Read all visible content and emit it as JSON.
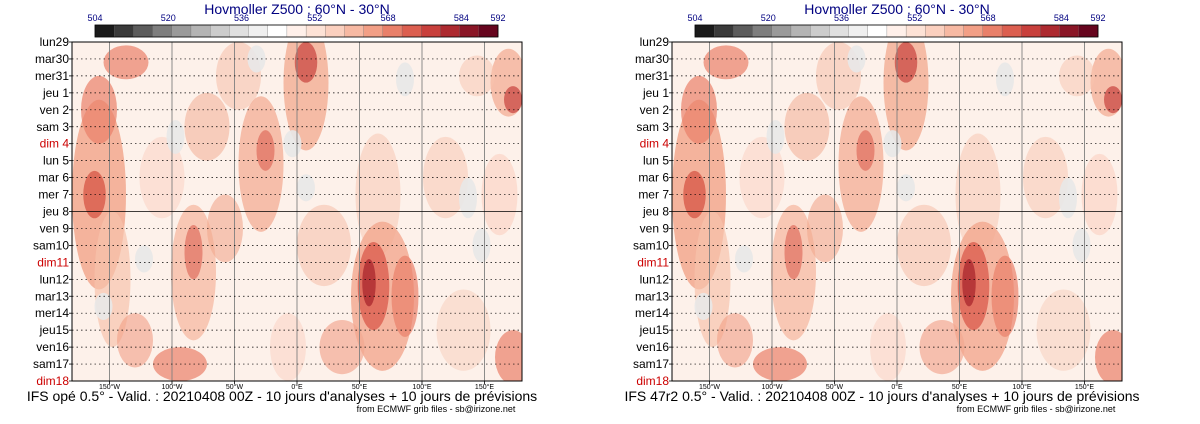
{
  "colors": {
    "title": "#000080",
    "weekend": "#cc0000",
    "weekday": "#000000",
    "grid": "#000000",
    "meridian": "#808080"
  },
  "colorbar": {
    "labels": [
      "504",
      "520",
      "536",
      "552",
      "568",
      "584",
      "592"
    ],
    "colors": [
      "#1a1a1a",
      "#3a3a3a",
      "#5c5c5c",
      "#7e7e7e",
      "#9a9a9a",
      "#b4b4b4",
      "#cccccc",
      "#e0e0e0",
      "#f0f0f0",
      "#ffffff",
      "#fff0ea",
      "#fde2d6",
      "#fbd0bf",
      "#f7b9a3",
      "#f29f86",
      "#e9806a",
      "#dc5f50",
      "#c8403c",
      "#ad2a30",
      "#8a1626",
      "#66051e"
    ]
  },
  "chart_data": [
    {
      "type": "heatmap",
      "title": "Hovmoller Z500 : 60°N - 30°N",
      "caption": "IFS opé 0.5° - Valid. : 20210408 00Z - 10 jours d'analyses + 10 jours de prévisions",
      "credit": "from ECMWF grib files - sb@irizone.net",
      "y_labels": [
        "lun29",
        "mar30",
        "mer31",
        "jeu 1",
        "ven 2",
        "sam 3",
        "dim 4",
        "lun 5",
        "mar 6",
        "mer 7",
        "jeu 8",
        "ven 9",
        "sam10",
        "dim11",
        "lun12",
        "mar13",
        "mer14",
        "jeu15",
        "ven16",
        "sam17",
        "dim18"
      ],
      "weekend_labels": [
        "dim 4",
        "dim11",
        "dim18"
      ],
      "x_labels": [
        "150°W",
        "100°W",
        "50°W",
        "0°E",
        "50°E",
        "100°E",
        "150°E"
      ],
      "x_values": [
        -150,
        -100,
        -50,
        0,
        50,
        100,
        150
      ],
      "xlim": [
        -180,
        180
      ],
      "analysis_forecast_split": "jeu 8",
      "colorbar_range": [
        504,
        592
      ]
    },
    {
      "type": "heatmap",
      "title": "Hovmoller Z500 : 60°N - 30°N",
      "caption": "IFS 47r2 0.5° - Valid. : 20210408 00Z - 10 jours d'analyses + 10 jours de prévisions",
      "credit": "from ECMWF grib files - sb@irizone.net",
      "y_labels": [
        "lun29",
        "mar30",
        "mer31",
        "jeu 1",
        "ven 2",
        "sam 3",
        "dim 4",
        "lun 5",
        "mar 6",
        "mer 7",
        "jeu 8",
        "ven 9",
        "sam10",
        "dim11",
        "lun12",
        "mar13",
        "mer14",
        "jeu15",
        "ven16",
        "sam17",
        "dim18"
      ],
      "weekend_labels": [
        "dim 4",
        "dim11",
        "dim18"
      ],
      "x_labels": [
        "150°W",
        "100°W",
        "50°W",
        "0°E",
        "50°E",
        "100°E",
        "150°E"
      ],
      "x_values": [
        -150,
        -100,
        -50,
        0,
        50,
        100,
        150
      ],
      "xlim": [
        -180,
        180
      ],
      "analysis_forecast_split": "jeu 8",
      "colorbar_range": [
        504,
        592
      ]
    }
  ]
}
